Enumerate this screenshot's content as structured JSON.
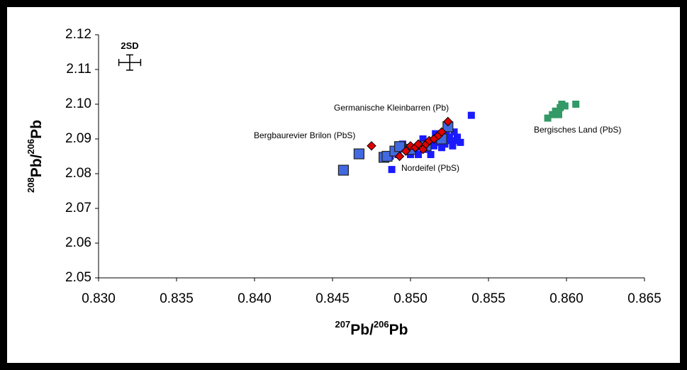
{
  "chart_data": {
    "type": "scatter",
    "xlabel": [
      "207",
      "Pb/",
      "206",
      "Pb"
    ],
    "ylabel": [
      "208",
      "Pb/",
      "206",
      "Pb"
    ],
    "xlim": [
      0.83,
      0.865
    ],
    "ylim": [
      2.05,
      2.12
    ],
    "xticks": [
      {
        "value": 0.83,
        "label": "0.830"
      },
      {
        "value": 0.835,
        "label": "0.835"
      },
      {
        "value": 0.84,
        "label": "0.840"
      },
      {
        "value": 0.845,
        "label": "0.845"
      },
      {
        "value": 0.85,
        "label": "0.850"
      },
      {
        "value": 0.855,
        "label": "0.855"
      },
      {
        "value": 0.86,
        "label": "0.860"
      },
      {
        "value": 0.865,
        "label": "0.865"
      }
    ],
    "yticks": [
      2.05,
      2.06,
      2.07,
      2.08,
      2.09,
      {
        "value": 2.1,
        "label": "2.10"
      },
      2.11,
      2.12
    ],
    "error_bar": {
      "label": "2SD",
      "x": 0.832,
      "y": 2.112,
      "xerr": 0.0007,
      "yerr": 0.0022
    },
    "series": [
      {
        "name": "Nordeifel (PbS)",
        "color": "#1a1aff",
        "label_color": "#000099",
        "marker": "square",
        "x": [
          0.8488,
          0.8539,
          0.8532,
          0.8528,
          0.8527,
          0.8525,
          0.8522,
          0.852,
          0.8518,
          0.8515,
          0.8513,
          0.851,
          0.8508,
          0.8505,
          0.8503,
          0.85,
          0.8498,
          0.8495,
          0.8492,
          0.849,
          0.8487,
          0.8523,
          0.8526,
          0.8529,
          0.853,
          0.8516
        ],
        "y": [
          2.0812,
          2.0968,
          2.089,
          2.092,
          2.088,
          2.0905,
          2.0885,
          2.0875,
          2.089,
          2.088,
          2.0855,
          2.087,
          2.09,
          2.0855,
          2.0865,
          2.0855,
          2.087,
          2.0885,
          2.0855,
          2.0868,
          2.085,
          2.0925,
          2.0895,
          2.0895,
          2.0905,
          2.0915
        ]
      },
      {
        "name": "Bergbaurevier Brilon (PbS)",
        "color": "#4169e1",
        "label_color": "#2f6fae",
        "marker": "big-square",
        "x": [
          0.8457,
          0.8467,
          0.8483,
          0.8485,
          0.849,
          0.8493,
          0.85,
          0.851,
          0.852,
          0.8524
        ],
        "y": [
          2.081,
          2.0857,
          2.0847,
          2.085,
          2.0865,
          2.0878,
          2.087,
          2.088,
          2.09,
          2.0935
        ]
      },
      {
        "name": "Germanische Kleinbarren (Pb)",
        "color": "#e00000",
        "label_color": "#cc0000",
        "marker": "diamond",
        "x": [
          0.8475,
          0.8493,
          0.8497,
          0.85,
          0.8503,
          0.8505,
          0.8508,
          0.851,
          0.8512,
          0.8515,
          0.8518,
          0.852,
          0.8524
        ],
        "y": [
          2.088,
          2.085,
          2.0865,
          2.088,
          2.0875,
          2.0885,
          2.087,
          2.0885,
          2.0895,
          2.09,
          2.091,
          2.092,
          2.095
        ]
      },
      {
        "name": "Bergisches Land (PbS)",
        "color": "#339966",
        "label_color": "#339966",
        "marker": "square",
        "x": [
          0.8588,
          0.8591,
          0.8593,
          0.8595,
          0.8596,
          0.8597,
          0.8599,
          0.8606
        ],
        "y": [
          2.096,
          2.097,
          2.098,
          2.097,
          2.099,
          2.1,
          2.0995,
          2.1
        ]
      }
    ]
  }
}
